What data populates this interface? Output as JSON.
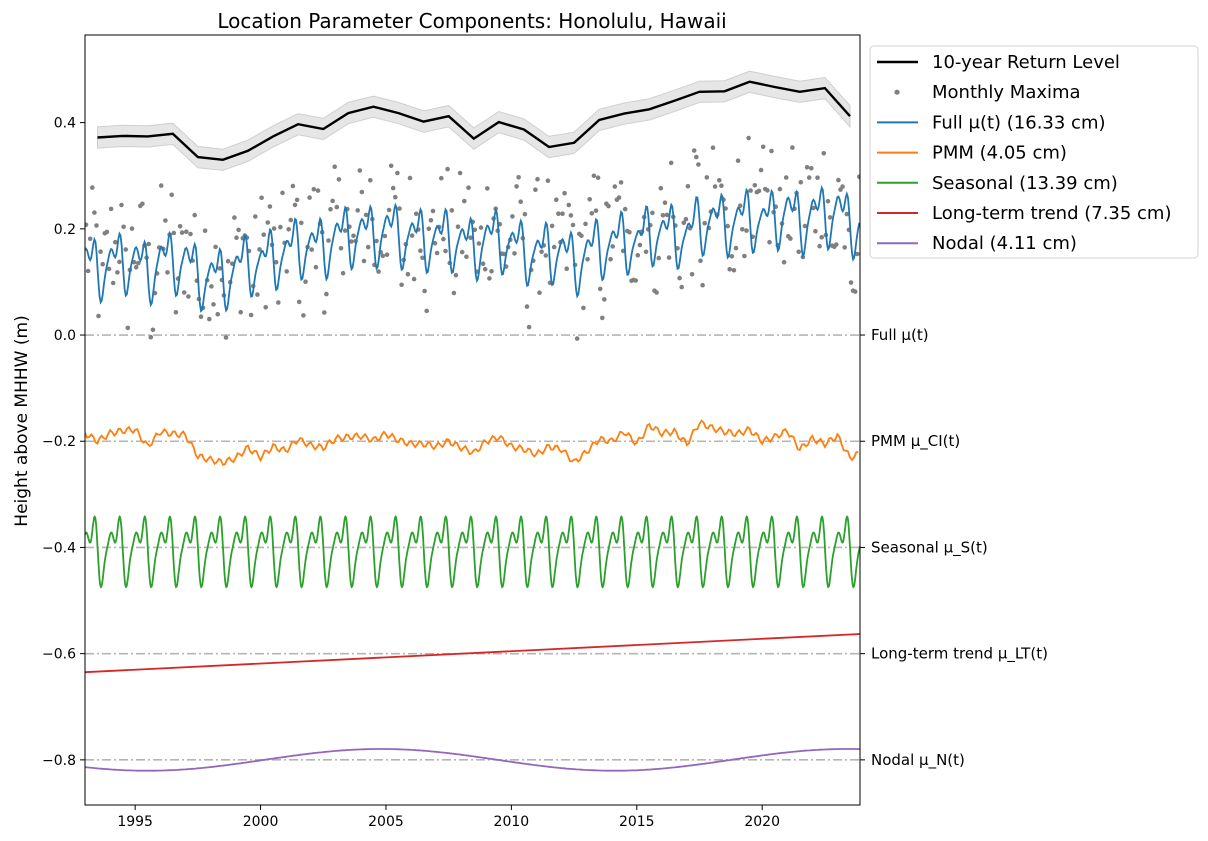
{
  "chart_data": {
    "type": "line",
    "title": "Location Parameter Components: Honolulu, Hawaii",
    "xlabel": "",
    "ylabel": "Height above MHHW (m)",
    "xlim": [
      1993.0,
      2023.9
    ],
    "ylim": [
      -0.885,
      0.565
    ],
    "xticks": [
      1995,
      2000,
      2005,
      2010,
      2015,
      2020
    ],
    "yticks": [
      {
        "value": 0.4,
        "label": "0.4"
      },
      {
        "value": 0.2,
        "label": "0.2"
      },
      {
        "value": 0.0,
        "label": "0.0"
      },
      {
        "value": -0.2,
        "label": "−0.2"
      },
      {
        "value": -0.4,
        "label": "−0.4"
      },
      {
        "value": -0.6,
        "label": "−0.6"
      },
      {
        "value": -0.8,
        "label": "−0.8"
      }
    ],
    "legend_position": "outside-upper-right",
    "legend": [
      {
        "label": "10-year Return Level",
        "color": "#000000",
        "kind": "thick-line"
      },
      {
        "label": "Monthly Maxima",
        "color": "#808080",
        "kind": "dot"
      },
      {
        "label": "Full μ(t) (16.33 cm)",
        "color": "#1f77b4",
        "kind": "line"
      },
      {
        "label": "PMM (4.05 cm)",
        "color": "#ff7f0e",
        "kind": "line"
      },
      {
        "label": "Seasonal (13.39 cm)",
        "color": "#2ca02c",
        "kind": "line"
      },
      {
        "label": "Long-term trend (7.35 cm)",
        "color": "#d62728",
        "kind": "line"
      },
      {
        "label": "Nodal (4.11 cm)",
        "color": "#9467bd",
        "kind": "line"
      }
    ],
    "reference_lines": [
      {
        "y": 0.0,
        "label": "Full μ(t)"
      },
      {
        "y": -0.2,
        "label": "PMM μ_CI(t)"
      },
      {
        "y": -0.4,
        "label": "Seasonal μ_S(t)"
      },
      {
        "y": -0.6,
        "label": "Long-term trend μ_LT(t)"
      },
      {
        "y": -0.8,
        "label": "Nodal μ_N(t)"
      }
    ],
    "return_level": {
      "name": "10-year Return Level",
      "color": "#000000",
      "x": [
        1993.5,
        1994.5,
        1995.5,
        1996.5,
        1997.5,
        1998.5,
        1999.5,
        2000.5,
        2001.5,
        2002.5,
        2003.5,
        2004.5,
        2005.5,
        2006.5,
        2007.5,
        2008.5,
        2009.5,
        2010.5,
        2011.5,
        2012.5,
        2013.5,
        2014.5,
        2015.5,
        2016.5,
        2017.5,
        2018.5,
        2019.5,
        2020.5,
        2021.5,
        2022.5,
        2023.5
      ],
      "y": [
        0.372,
        0.375,
        0.374,
        0.379,
        0.335,
        0.33,
        0.347,
        0.374,
        0.397,
        0.388,
        0.418,
        0.43,
        0.418,
        0.402,
        0.412,
        0.37,
        0.401,
        0.387,
        0.354,
        0.362,
        0.405,
        0.417,
        0.425,
        0.441,
        0.458,
        0.459,
        0.477,
        0.467,
        0.458,
        0.465,
        0.412
      ],
      "band_halfwidth": 0.02
    },
    "full_mu": {
      "name": "Full μ(t) (16.33 cm)",
      "color": "#1f77b4",
      "baseline": 0.0
    },
    "pmm": {
      "name": "PMM (4.05 cm)",
      "color": "#ff7f0e",
      "baseline": -0.2,
      "x": [
        1993.0,
        1993.5,
        1994.0,
        1994.5,
        1995.0,
        1995.5,
        1996.0,
        1996.5,
        1997.0,
        1997.5,
        1998.0,
        1998.5,
        1999.0,
        1999.5,
        2000.0,
        2000.5,
        2001.0,
        2001.5,
        2002.0,
        2002.5,
        2003.0,
        2003.5,
        2004.0,
        2004.5,
        2005.0,
        2005.5,
        2006.0,
        2006.5,
        2007.0,
        2007.5,
        2008.0,
        2008.5,
        2009.0,
        2009.5,
        2010.0,
        2010.5,
        2011.0,
        2011.5,
        2012.0,
        2012.5,
        2013.0,
        2013.5,
        2014.0,
        2014.5,
        2015.0,
        2015.5,
        2016.0,
        2016.5,
        2017.0,
        2017.5,
        2018.0,
        2018.5,
        2019.0,
        2019.5,
        2020.0,
        2020.5,
        2021.0,
        2021.5,
        2022.0,
        2022.5,
        2023.0,
        2023.5,
        2023.9
      ],
      "y": [
        -0.185,
        -0.2,
        -0.185,
        -0.18,
        -0.178,
        -0.21,
        -0.182,
        -0.186,
        -0.188,
        -0.228,
        -0.235,
        -0.24,
        -0.232,
        -0.212,
        -0.23,
        -0.21,
        -0.218,
        -0.196,
        -0.208,
        -0.212,
        -0.195,
        -0.192,
        -0.19,
        -0.198,
        -0.186,
        -0.198,
        -0.205,
        -0.205,
        -0.21,
        -0.2,
        -0.212,
        -0.222,
        -0.2,
        -0.192,
        -0.21,
        -0.215,
        -0.225,
        -0.21,
        -0.215,
        -0.24,
        -0.22,
        -0.196,
        -0.2,
        -0.182,
        -0.205,
        -0.17,
        -0.185,
        -0.182,
        -0.205,
        -0.165,
        -0.175,
        -0.182,
        -0.186,
        -0.178,
        -0.2,
        -0.192,
        -0.18,
        -0.215,
        -0.195,
        -0.205,
        -0.19,
        -0.232,
        -0.222
      ]
    },
    "seasonal": {
      "name": "Seasonal (13.39 cm)",
      "color": "#2ca02c",
      "baseline": -0.4,
      "amplitude": 0.0745,
      "period_years": 1.0
    },
    "long_term_trend": {
      "name": "Long-term trend (7.35 cm)",
      "color": "#d62728",
      "baseline": -0.6,
      "x": [
        1993.0,
        2023.9
      ],
      "y": [
        -0.635,
        -0.563
      ]
    },
    "nodal": {
      "name": "Nodal (4.11 cm)",
      "color": "#9467bd",
      "baseline": -0.8,
      "amplitude": 0.0205,
      "period_years": 18.61,
      "peak_year": 2004.8
    },
    "monthly_maxima": {
      "name": "Monthly Maxima",
      "color": "#808080"
    }
  }
}
